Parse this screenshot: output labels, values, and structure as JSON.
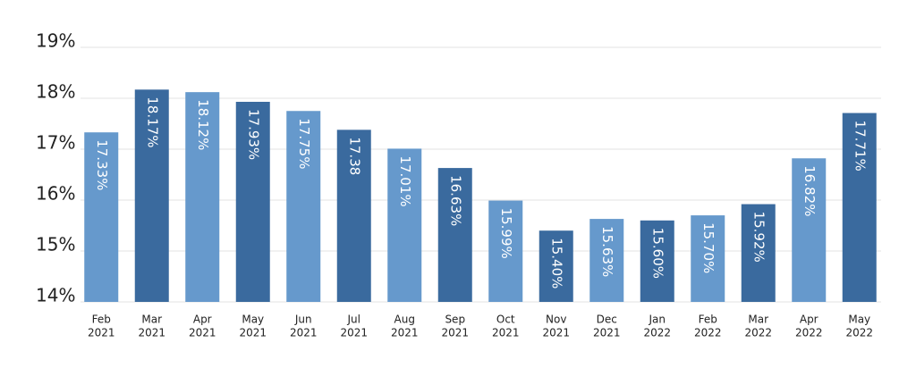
{
  "chart_data": {
    "type": "bar",
    "categories": [
      [
        "Feb",
        "2021"
      ],
      [
        "Mar",
        "2021"
      ],
      [
        "Apr",
        "2021"
      ],
      [
        "May",
        "2021"
      ],
      [
        "Jun",
        "2021"
      ],
      [
        "Jul",
        "2021"
      ],
      [
        "Aug",
        "2021"
      ],
      [
        "Sep",
        "2021"
      ],
      [
        "Oct",
        "2021"
      ],
      [
        "Nov",
        "2021"
      ],
      [
        "Dec",
        "2021"
      ],
      [
        "Jan",
        "2022"
      ],
      [
        "Feb",
        "2022"
      ],
      [
        "Mar",
        "2022"
      ],
      [
        "Apr",
        "2022"
      ],
      [
        "May",
        "2022"
      ]
    ],
    "values": [
      17.33,
      18.17,
      18.12,
      17.93,
      17.75,
      17.38,
      17.01,
      16.63,
      15.99,
      15.4,
      15.63,
      15.6,
      15.7,
      15.92,
      16.82,
      17.71
    ],
    "value_labels": [
      "17.33%",
      "18.17%",
      "18.12%",
      "17.93%",
      "17.75%",
      "17.38",
      "17.01%",
      "16.63%",
      "15.99%",
      "15.40%",
      "15.63%",
      "15.60%",
      "15.70%",
      "15.92%",
      "16.82%",
      "17.71%"
    ],
    "colors": [
      "#6699cc",
      "#3a6a9e",
      "#6699cc",
      "#3a6a9e",
      "#6699cc",
      "#3a6a9e",
      "#6699cc",
      "#3a6a9e",
      "#6699cc",
      "#3a6a9e",
      "#6699cc",
      "#3a6a9e",
      "#6699cc",
      "#3a6a9e",
      "#6699cc",
      "#3a6a9e"
    ],
    "ylim": [
      14,
      19
    ],
    "yticks": [
      {
        "value": 14,
        "label": "14%"
      },
      {
        "value": 15,
        "label": "15%"
      },
      {
        "value": 16,
        "label": "16%"
      },
      {
        "value": 17,
        "label": "17%"
      },
      {
        "value": 18,
        "label": "18%"
      },
      {
        "value": 19,
        "label": "19%"
      }
    ],
    "grid": true
  }
}
